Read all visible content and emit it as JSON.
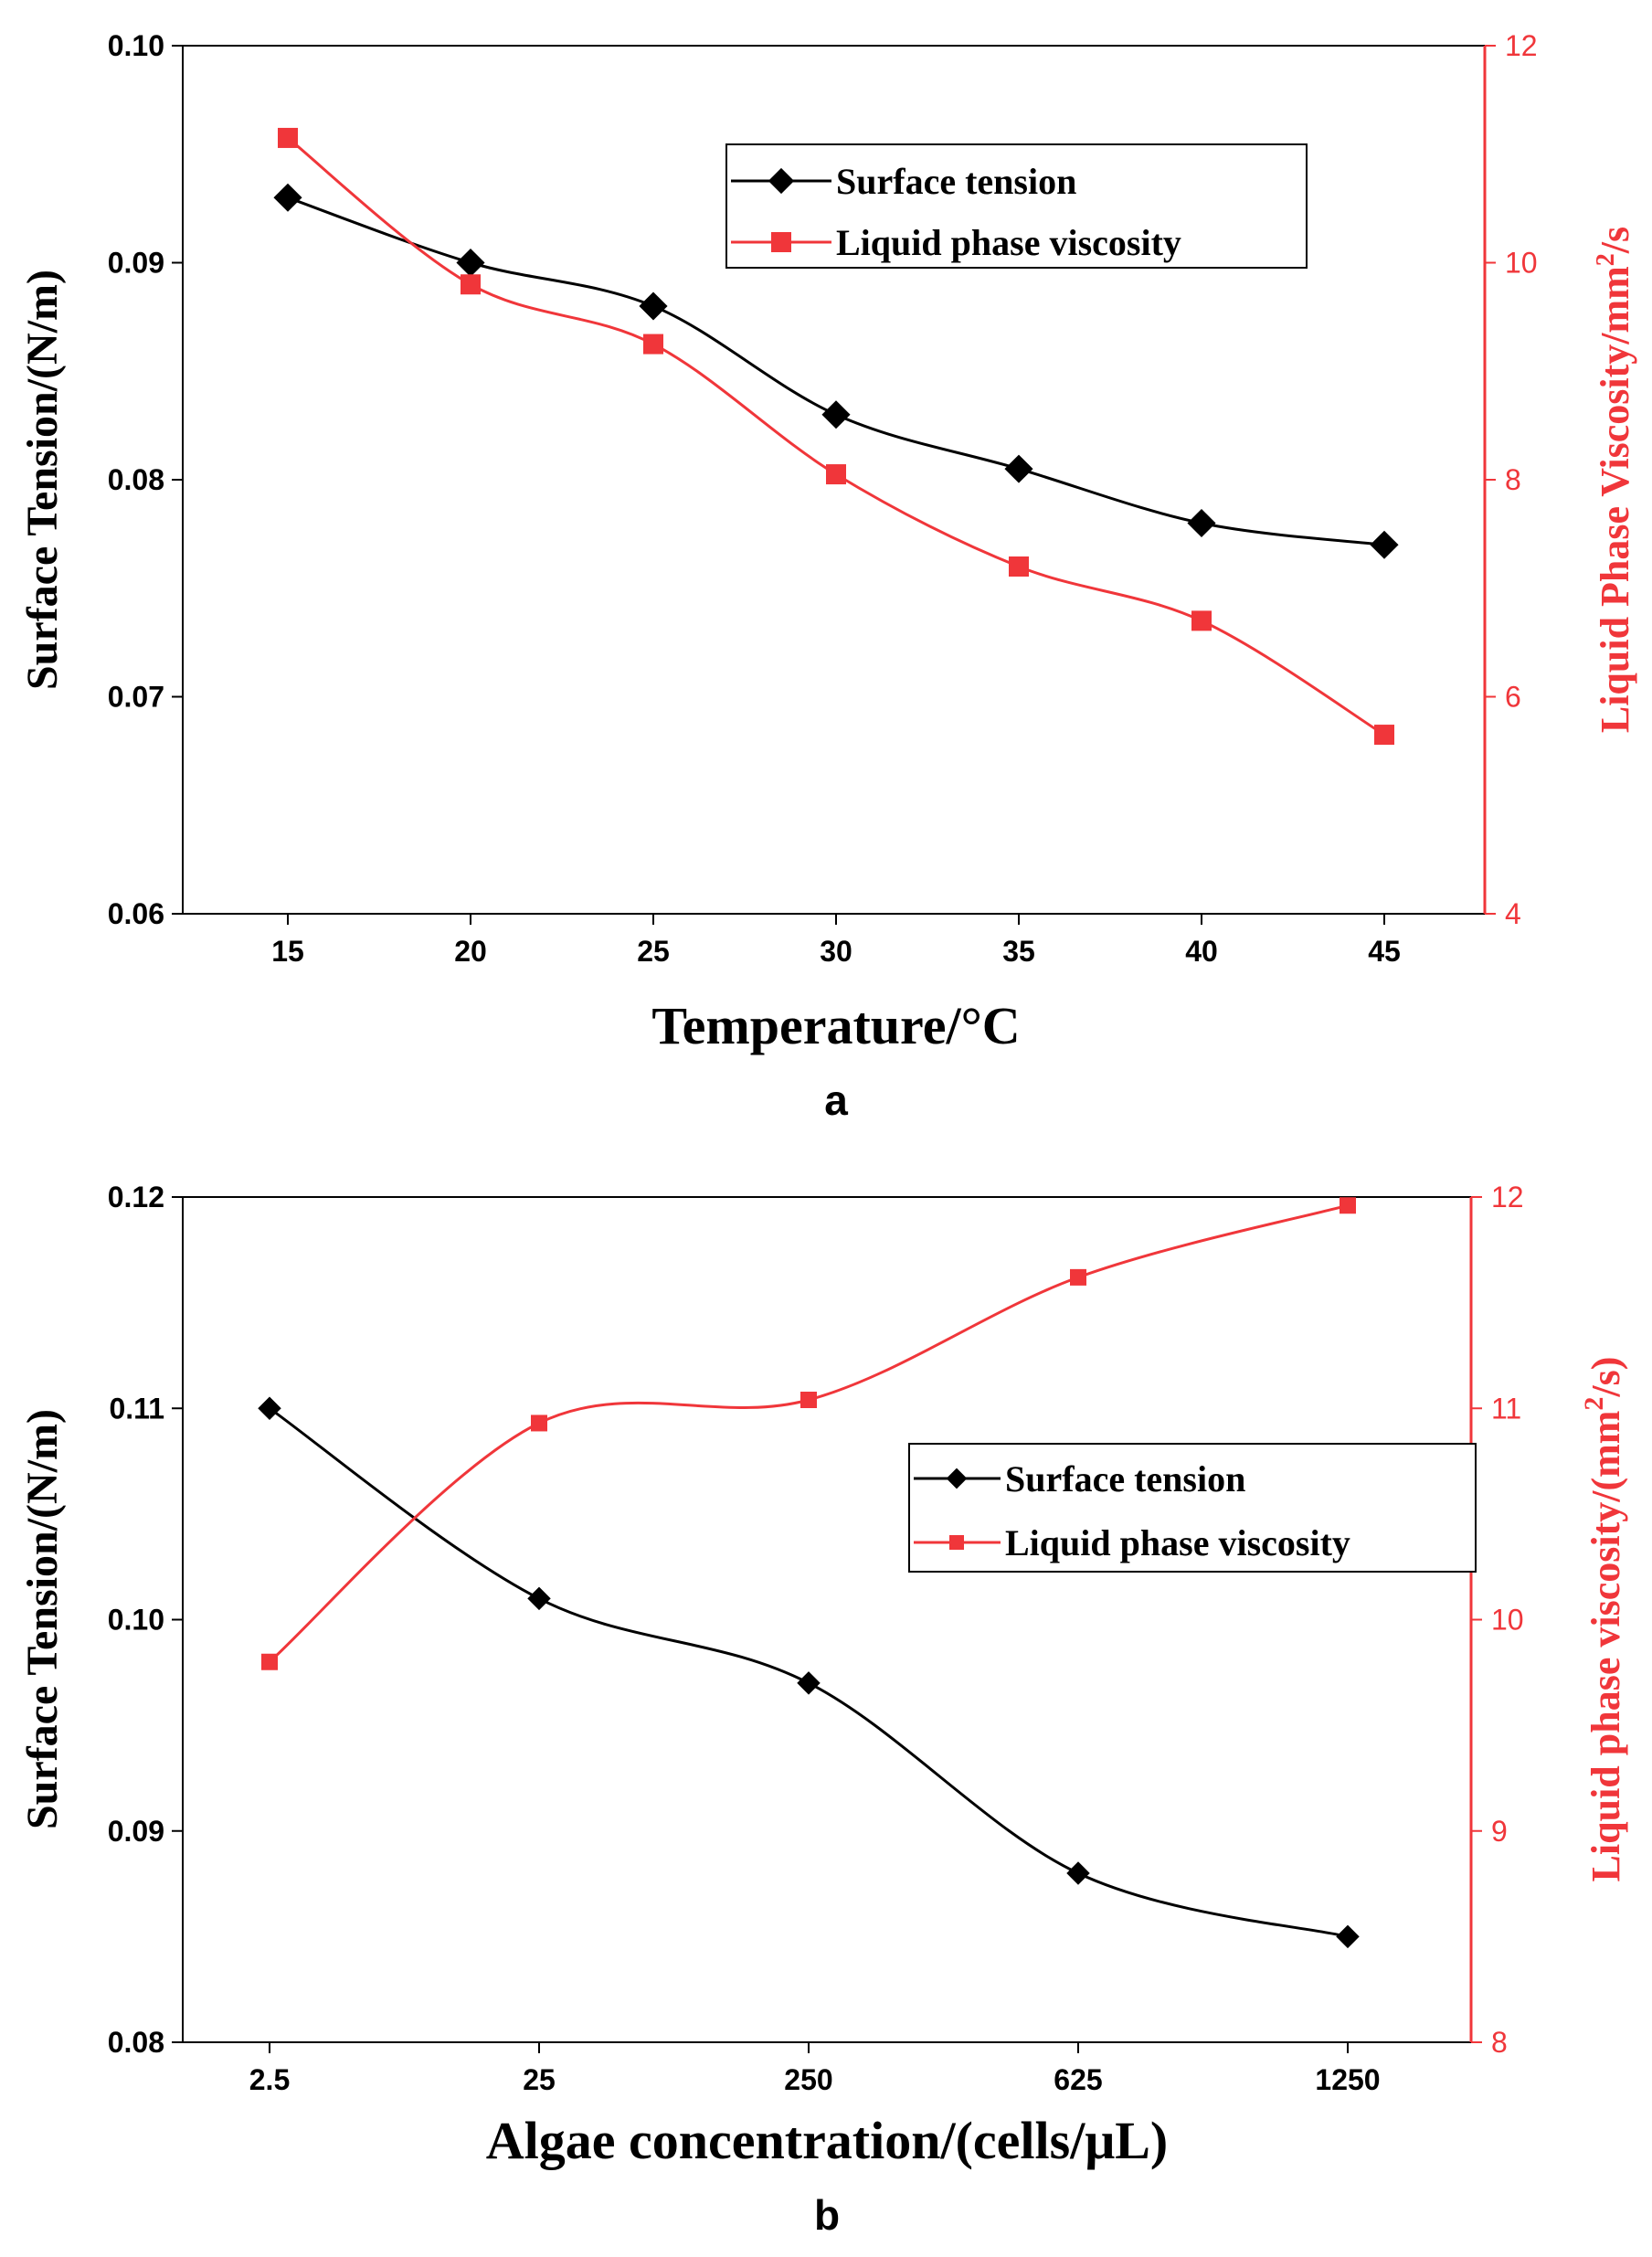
{
  "colors": {
    "surface": "#000000",
    "viscosity": "#f0363a",
    "axis": "#000000"
  },
  "chart_data": [
    {
      "type": "line",
      "panel_label": "a",
      "xlabel": "Temperature/°C",
      "ylabel_left": "Surface Tension/(N/m)",
      "ylabel_right": "Liquid Phase Viscosity/mm²/s",
      "categories": [
        "15",
        "20",
        "25",
        "30",
        "35",
        "40",
        "45"
      ],
      "xlim": [
        12.3,
        47.2
      ],
      "ylim_left": [
        0.06,
        0.1
      ],
      "ylim_right": [
        4,
        12
      ],
      "yticks_left": [
        "0.06",
        "0.07",
        "0.08",
        "0.09",
        "0.10"
      ],
      "yticks_right": [
        "4",
        "6",
        "8",
        "10",
        "12"
      ],
      "legend_position": "top-right",
      "series": [
        {
          "name": "Surface tension",
          "axis": "left",
          "marker": "diamond",
          "color": "#000000",
          "x": [
            15,
            20,
            25,
            30,
            35,
            40,
            45
          ],
          "values": [
            0.093,
            0.09,
            0.088,
            0.083,
            0.0805,
            0.078,
            0.077
          ]
        },
        {
          "name": "Liquid phase viscosity",
          "axis": "right",
          "marker": "square",
          "color": "#f0363a",
          "x": [
            15,
            20,
            25,
            30,
            35,
            40,
            45
          ],
          "values": [
            11.15,
            9.8,
            9.25,
            8.05,
            7.2,
            6.7,
            5.65
          ]
        }
      ]
    },
    {
      "type": "line",
      "panel_label": "b",
      "xlabel": "Algae concentration/(cells/μL)",
      "ylabel_left": "Surface Tension/(N/m)",
      "ylabel_right": "Liquid phase viscosity/(mm²/s)",
      "categories": [
        "2.5",
        "25",
        "250",
        "625",
        "1250"
      ],
      "xlim": [
        -0.6,
        4.6
      ],
      "ylim_left": [
        0.08,
        0.12
      ],
      "ylim_right": [
        8,
        12
      ],
      "yticks_left": [
        "0.08",
        "0.09",
        "0.10",
        "0.11",
        "0.12"
      ],
      "yticks_right": [
        "8",
        "9",
        "10",
        "11",
        "12"
      ],
      "legend_position": "middle-right",
      "series": [
        {
          "name": "Surface tension",
          "axis": "left",
          "marker": "diamond",
          "color": "#000000",
          "x": [
            0,
            1,
            2,
            3,
            4
          ],
          "values": [
            0.11,
            0.101,
            0.097,
            0.088,
            0.085
          ]
        },
        {
          "name": "Liquid phase viscosity",
          "axis": "right",
          "marker": "square",
          "color": "#f0363a",
          "x": [
            0,
            1,
            2,
            3,
            4
          ],
          "values": [
            9.8,
            10.93,
            11.04,
            11.62,
            11.96
          ]
        }
      ]
    }
  ]
}
